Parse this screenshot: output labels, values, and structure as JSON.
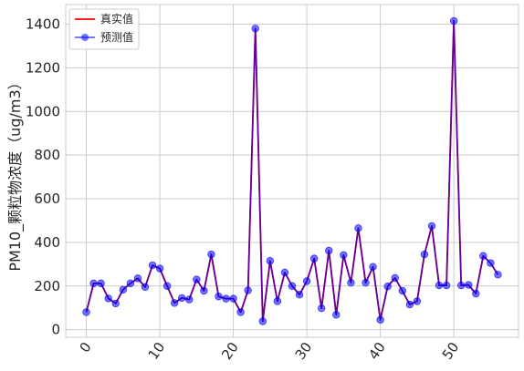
{
  "chart_data": {
    "type": "line",
    "title": "",
    "xlabel": "",
    "ylabel": "PM10_颗粒物浓度（ug/m3）",
    "xlim": [
      -2.8,
      58.8
    ],
    "ylim": [
      -35,
      1490
    ],
    "xticks": [
      0,
      10,
      20,
      30,
      40,
      50
    ],
    "yticks": [
      0,
      200,
      400,
      600,
      800,
      1000,
      1200,
      1400
    ],
    "grid": true,
    "legend": "top-left",
    "x": [
      0,
      1,
      2,
      3,
      4,
      5,
      6,
      7,
      8,
      9,
      10,
      11,
      12,
      13,
      14,
      15,
      16,
      17,
      18,
      19,
      20,
      21,
      22,
      23,
      24,
      25,
      26,
      27,
      28,
      29,
      30,
      31,
      32,
      33,
      34,
      35,
      36,
      37,
      38,
      39,
      40,
      41,
      42,
      43,
      44,
      45,
      46,
      47,
      48,
      49,
      50,
      51,
      52,
      53,
      54,
      55,
      56
    ],
    "series": [
      {
        "name": "真实值",
        "color": "#ff0000",
        "values": [
          80,
          212,
          212,
          143,
          120,
          183,
          212,
          235,
          195,
          295,
          280,
          200,
          122,
          145,
          138,
          230,
          178,
          345,
          152,
          142,
          142,
          80,
          180,
          1380,
          38,
          315,
          130,
          262,
          200,
          160,
          222,
          326,
          98,
          362,
          68,
          342,
          215,
          465,
          215,
          288,
          45,
          198,
          237,
          178,
          115,
          130,
          345,
          475,
          203,
          203,
          1415,
          203,
          205,
          165,
          338,
          305,
          252
        ]
      },
      {
        "name": "预测值",
        "color": "#0000ff",
        "values": [
          80,
          212,
          212,
          143,
          120,
          183,
          212,
          235,
          195,
          295,
          280,
          200,
          122,
          145,
          138,
          230,
          178,
          345,
          152,
          142,
          142,
          80,
          180,
          1380,
          38,
          315,
          130,
          262,
          200,
          160,
          222,
          326,
          98,
          362,
          68,
          342,
          215,
          465,
          215,
          288,
          45,
          198,
          237,
          178,
          115,
          130,
          345,
          475,
          203,
          203,
          1415,
          203,
          205,
          165,
          338,
          305,
          252
        ]
      }
    ]
  }
}
